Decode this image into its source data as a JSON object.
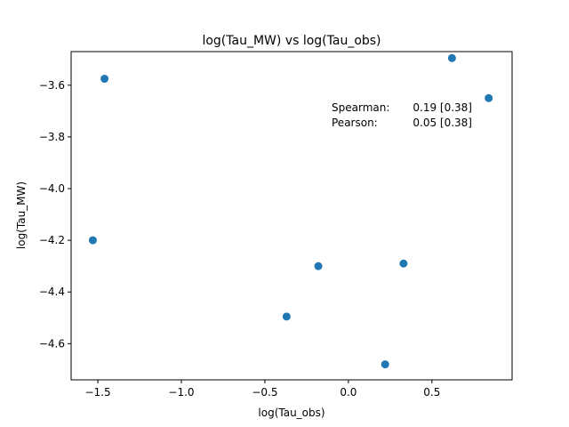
{
  "chart_data": {
    "type": "scatter",
    "title": "log(Tau_MW) vs log(Tau_obs)",
    "xlabel": "log(Tau_obs)",
    "ylabel": "log(Tau_MW)",
    "xlim": [
      -1.66,
      0.98
    ],
    "ylim": [
      -4.74,
      -3.47
    ],
    "xticks": [
      -1.5,
      -1.0,
      -0.5,
      0.0,
      0.5
    ],
    "xtick_labels": [
      "−1.5",
      "−1.0",
      "−0.5",
      "0.0",
      "0.5"
    ],
    "yticks": [
      -4.6,
      -4.4,
      -4.2,
      -4.0,
      -3.8,
      -3.6
    ],
    "ytick_labels": [
      "−4.6",
      "−4.4",
      "−4.2",
      "−4.0",
      "−3.8",
      "−3.6"
    ],
    "grid": false,
    "series": [
      {
        "color": "#1f77b4",
        "points": [
          {
            "x": -1.53,
            "y": -4.2
          },
          {
            "x": -1.46,
            "y": -3.575
          },
          {
            "x": -0.37,
            "y": -4.495
          },
          {
            "x": -0.18,
            "y": -4.3
          },
          {
            "x": 0.22,
            "y": -4.68
          },
          {
            "x": 0.33,
            "y": -4.29
          },
          {
            "x": 0.62,
            "y": -3.495
          },
          {
            "x": 0.84,
            "y": -3.65
          }
        ]
      }
    ],
    "annotations": [
      {
        "label": "Spearman:",
        "value": "0.19 [0.38]"
      },
      {
        "label": "Pearson:",
        "value": "0.05 [0.38]"
      }
    ]
  }
}
